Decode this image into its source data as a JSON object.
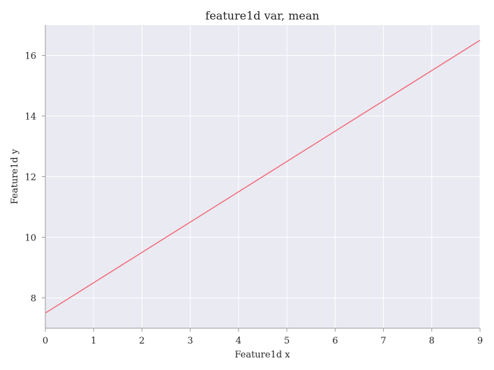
{
  "chart_data": {
    "type": "line",
    "title": "feature1d var, mean",
    "xlabel": "Feature1d x",
    "ylabel": "Feature1d y",
    "xlim": [
      0,
      9
    ],
    "ylim": [
      7.0,
      17.0
    ],
    "xticks": [
      0,
      1,
      2,
      3,
      4,
      5,
      6,
      7,
      8,
      9
    ],
    "yticks": [
      8,
      10,
      12,
      14,
      16
    ],
    "grid": true,
    "background_color": "#eaeaf2",
    "series": [
      {
        "color": "#f0707e",
        "x": [
          0,
          1,
          2,
          3,
          4,
          5,
          6,
          7,
          8,
          9
        ],
        "y": [
          7.5,
          8.5,
          9.5,
          10.5,
          11.5,
          12.5,
          13.5,
          14.5,
          15.5,
          16.5
        ]
      }
    ]
  }
}
